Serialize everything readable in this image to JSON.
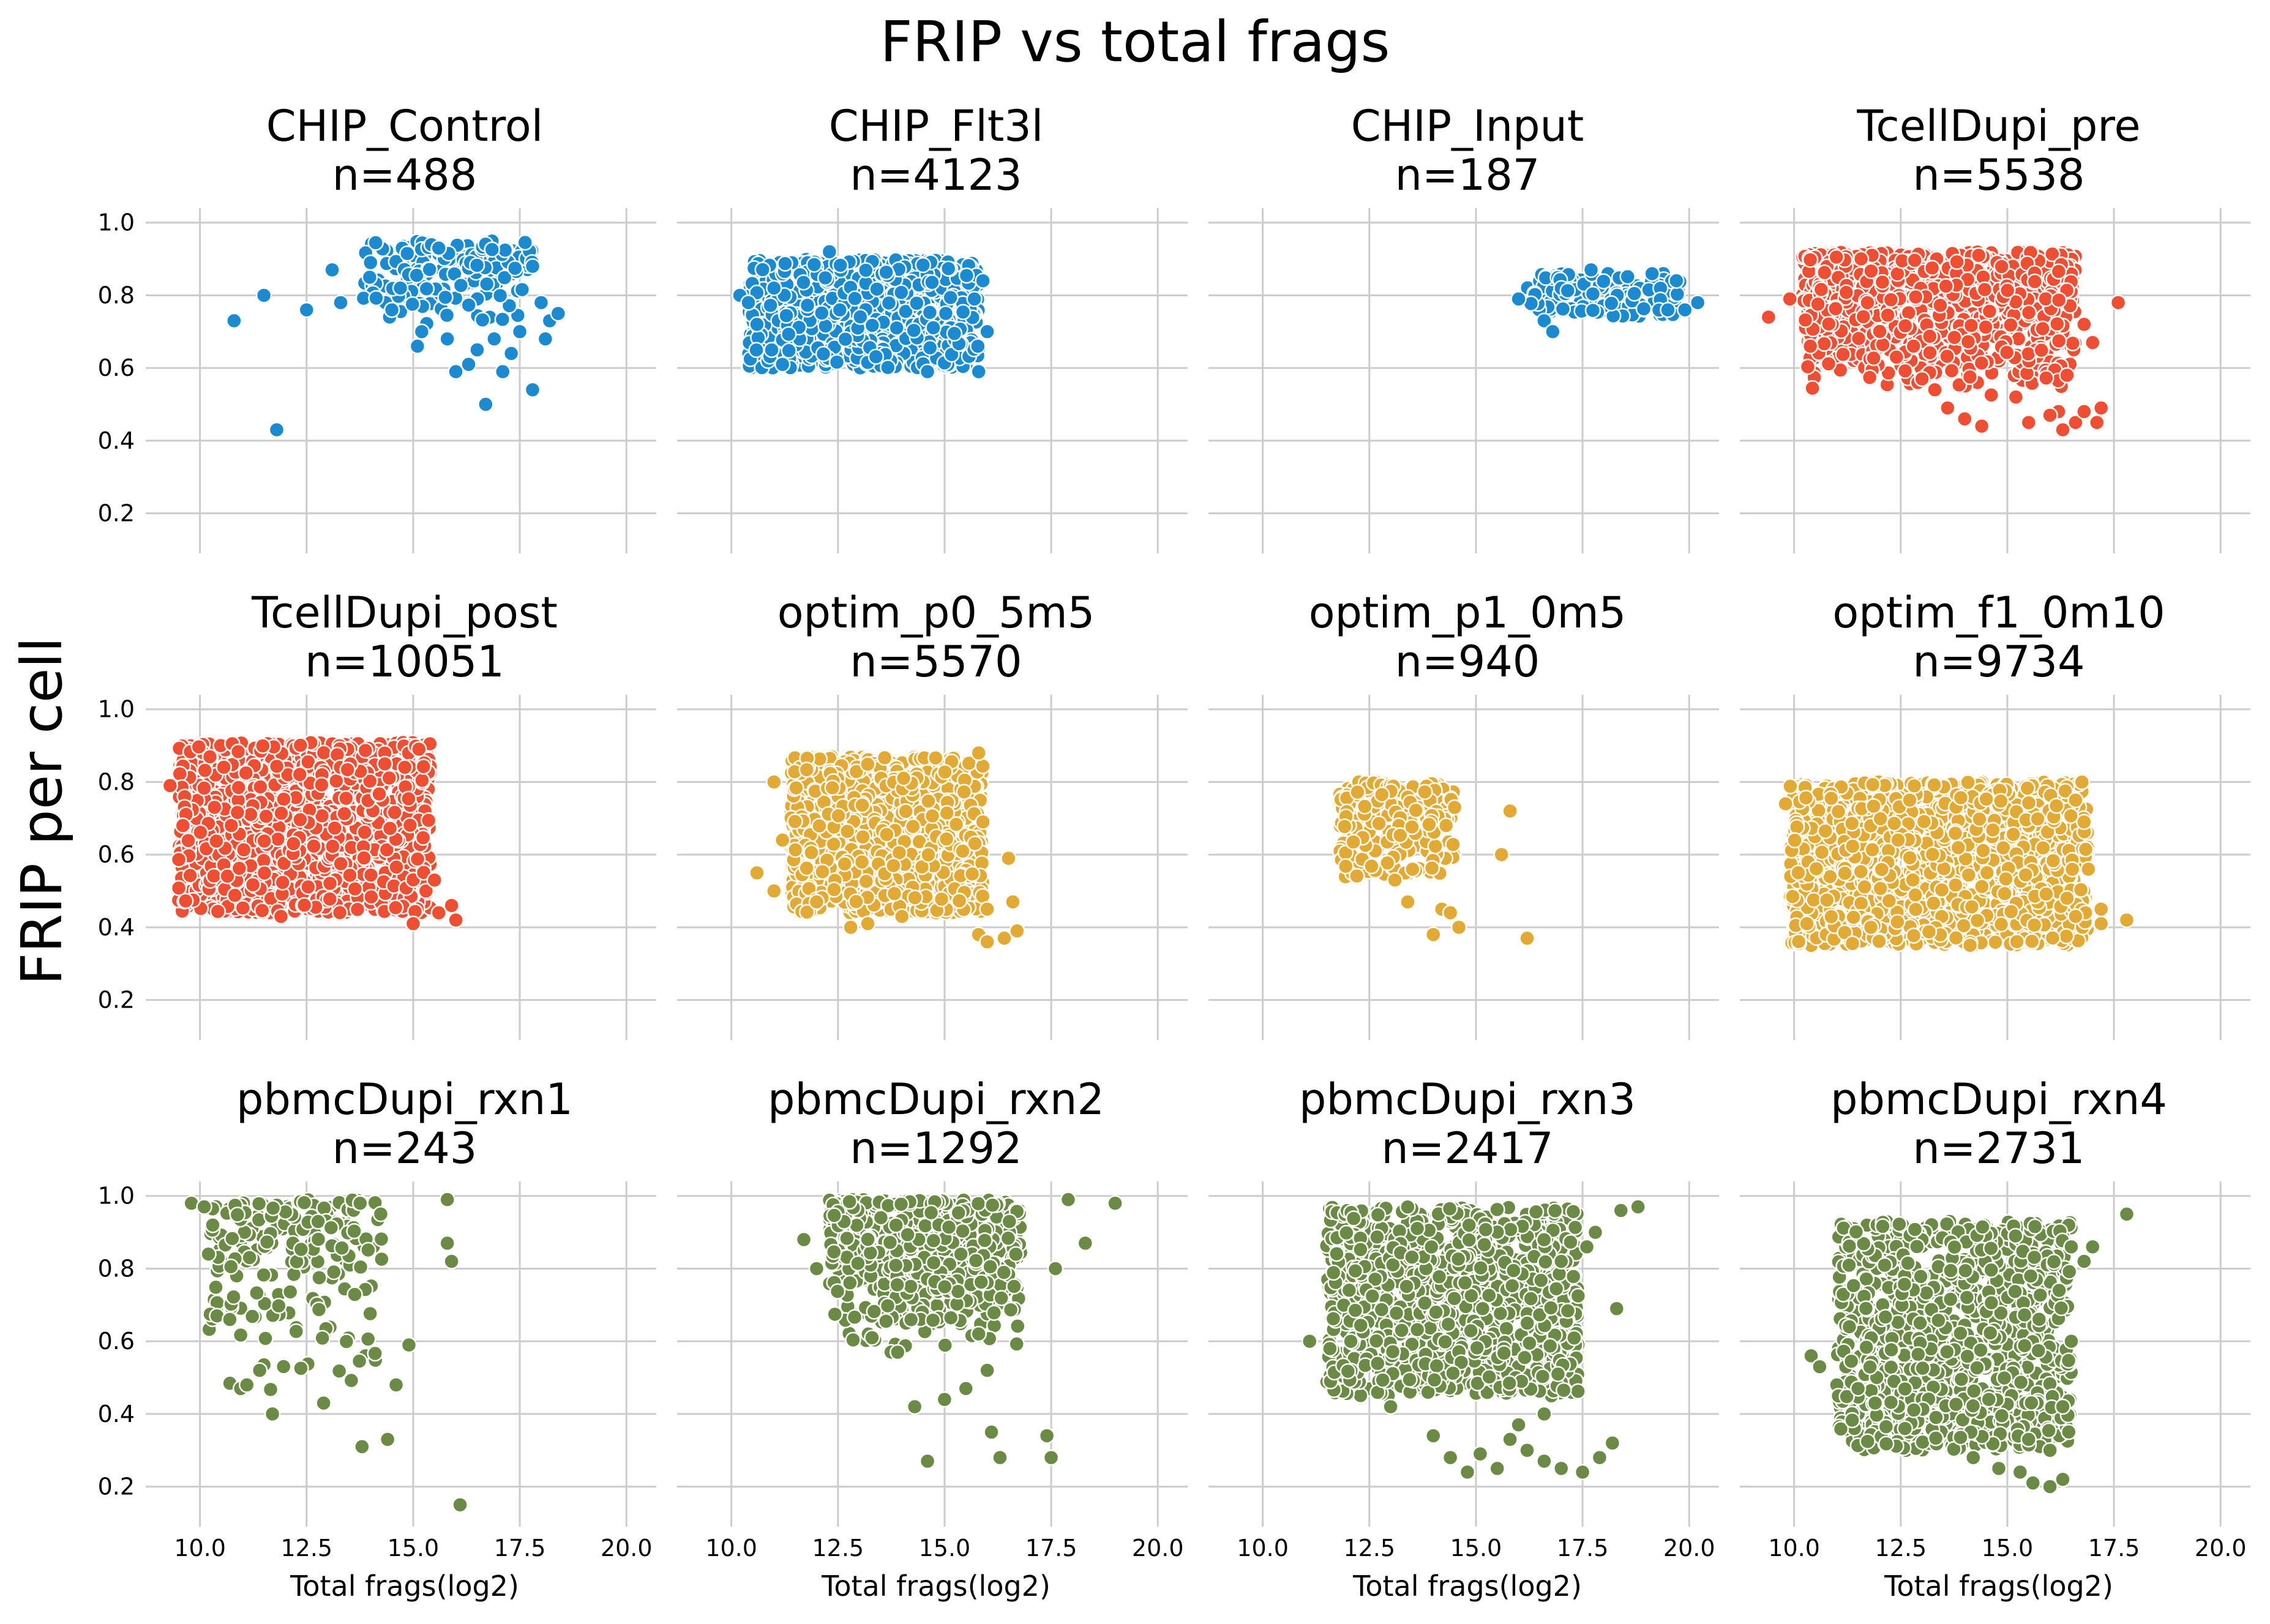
{
  "figure": {
    "title": "FRIP vs total frags",
    "ylabel": "FRIP per cell",
    "xlabel": "Total frags(log2)"
  },
  "colors": {
    "blue": "#1b8ad1",
    "red": "#f04e33",
    "yellow": "#e2a935",
    "green": "#6a8a46"
  },
  "chart_data": [
    {
      "type": "scatter",
      "title": "CHIP_Control",
      "subtitle": "n=488",
      "color": "#1b8ad1",
      "xlabel": "",
      "ylabel": "",
      "xlim": [
        8.9,
        20.7
      ],
      "ylim": [
        0.11,
        1.04
      ],
      "xticks": [
        "10.0",
        "12.5",
        "15.0",
        "17.5",
        "20.0"
      ],
      "yticks": [
        "0.2",
        "0.4",
        "0.6",
        "0.8",
        "1.0"
      ],
      "points": [
        [
          10.8,
          0.73
        ],
        [
          11.5,
          0.8
        ],
        [
          11.8,
          0.43
        ],
        [
          12.5,
          0.76
        ],
        [
          13.1,
          0.87
        ],
        [
          13.3,
          0.78
        ],
        [
          14.0,
          0.89
        ],
        [
          14.5,
          0.76
        ],
        [
          14.7,
          0.82
        ],
        [
          15.1,
          0.66
        ],
        [
          15.2,
          0.7
        ],
        [
          15.6,
          0.93
        ],
        [
          15.8,
          0.68
        ],
        [
          16.0,
          0.59
        ],
        [
          16.3,
          0.61
        ],
        [
          16.5,
          0.65
        ],
        [
          16.7,
          0.5
        ],
        [
          16.9,
          0.68
        ],
        [
          17.1,
          0.59
        ],
        [
          17.3,
          0.64
        ],
        [
          17.5,
          0.7
        ],
        [
          17.8,
          0.54
        ],
        [
          17.8,
          0.88
        ],
        [
          18.0,
          0.78
        ],
        [
          18.2,
          0.73
        ],
        [
          18.1,
          0.68
        ],
        [
          18.4,
          0.75
        ]
      ],
      "cloud": {
        "x0": 14.0,
        "x1": 17.6,
        "y0": 0.7,
        "y1": 0.95,
        "count": 170,
        "widen": 0.35,
        "top_bias": true
      }
    },
    {
      "type": "scatter",
      "title": "CHIP_Flt3l",
      "subtitle": "n=4123",
      "color": "#1b8ad1",
      "xlabel": "",
      "ylabel": "",
      "xlim": [
        8.9,
        20.7
      ],
      "ylim": [
        0.11,
        1.04
      ],
      "xticks": [
        "10.0",
        "12.5",
        "15.0",
        "17.5",
        "20.0"
      ],
      "yticks": [
        "0.2",
        "0.4",
        "0.6",
        "0.8",
        "1.0"
      ],
      "points": [
        [
          10.2,
          0.8
        ],
        [
          10.4,
          0.78
        ],
        [
          10.6,
          0.72
        ],
        [
          11.0,
          0.82
        ],
        [
          11.2,
          0.61
        ],
        [
          12.3,
          0.92
        ],
        [
          14.6,
          0.59
        ],
        [
          15.8,
          0.59
        ],
        [
          16.0,
          0.7
        ],
        [
          15.7,
          0.79
        ],
        [
          15.9,
          0.84
        ]
      ],
      "cloud": {
        "x0": 10.4,
        "x1": 15.8,
        "y0": 0.6,
        "y1": 0.9,
        "count": 900,
        "widen": 0.0,
        "top_bias": false
      }
    },
    {
      "type": "scatter",
      "title": "CHIP_Input",
      "subtitle": "n=187",
      "color": "#1b8ad1",
      "xlabel": "",
      "ylabel": "",
      "xlim": [
        8.9,
        20.7
      ],
      "ylim": [
        0.11,
        1.04
      ],
      "xticks": [
        "10.0",
        "12.5",
        "15.0",
        "17.5",
        "20.0"
      ],
      "yticks": [
        "0.2",
        "0.4",
        "0.6",
        "0.8",
        "1.0"
      ],
      "points": [
        [
          16.0,
          0.79
        ],
        [
          16.6,
          0.73
        ],
        [
          16.8,
          0.7
        ],
        [
          17.7,
          0.87
        ],
        [
          19.5,
          0.76
        ],
        [
          19.9,
          0.76
        ],
        [
          20.2,
          0.78
        ]
      ],
      "cloud": {
        "x0": 16.2,
        "x1": 19.8,
        "y0": 0.74,
        "y1": 0.86,
        "count": 160,
        "widen": 0.0,
        "top_bias": false
      }
    },
    {
      "type": "scatter",
      "title": "TcellDupi_pre",
      "subtitle": "n=5538",
      "color": "#f04e33",
      "xlabel": "",
      "ylabel": "",
      "xlim": [
        8.9,
        20.7
      ],
      "ylim": [
        0.11,
        1.04
      ],
      "xticks": [
        "10.0",
        "12.5",
        "15.0",
        "17.5",
        "20.0"
      ],
      "yticks": [
        "0.2",
        "0.4",
        "0.6",
        "0.8",
        "1.0"
      ],
      "points": [
        [
          9.4,
          0.74
        ],
        [
          9.9,
          0.79
        ],
        [
          17.6,
          0.78
        ],
        [
          16.4,
          0.58
        ],
        [
          16.2,
          0.48
        ],
        [
          16.3,
          0.43
        ],
        [
          16.6,
          0.45
        ],
        [
          16.8,
          0.48
        ],
        [
          17.1,
          0.45
        ],
        [
          17.2,
          0.49
        ],
        [
          16.0,
          0.47
        ],
        [
          15.5,
          0.45
        ],
        [
          15.2,
          0.52
        ],
        [
          14.0,
          0.46
        ],
        [
          14.4,
          0.44
        ],
        [
          13.6,
          0.49
        ],
        [
          13.3,
          0.54
        ],
        [
          13.0,
          0.57
        ],
        [
          12.4,
          0.63
        ],
        [
          12.8,
          0.66
        ],
        [
          17.0,
          0.67
        ],
        [
          16.8,
          0.72
        ]
      ],
      "cloud": {
        "x0": 10.2,
        "x1": 16.6,
        "y0": 0.52,
        "y1": 0.92,
        "count": 1000,
        "widen": 0.0,
        "top_bias": true
      }
    },
    {
      "type": "scatter",
      "title": "TcellDupi_post",
      "subtitle": "n=10051",
      "color": "#f04e33",
      "xlabel": "",
      "ylabel": "",
      "xlim": [
        8.9,
        20.7
      ],
      "ylim": [
        0.11,
        1.04
      ],
      "xticks": [
        "10.0",
        "12.5",
        "15.0",
        "17.5",
        "20.0"
      ],
      "yticks": [
        "0.2",
        "0.4",
        "0.6",
        "0.8",
        "1.0"
      ],
      "points": [
        [
          9.3,
          0.79
        ],
        [
          9.6,
          0.68
        ],
        [
          11.9,
          0.43
        ],
        [
          15.0,
          0.41
        ],
        [
          15.6,
          0.44
        ],
        [
          15.9,
          0.46
        ],
        [
          16.0,
          0.42
        ],
        [
          15.3,
          0.5
        ],
        [
          15.5,
          0.53
        ]
      ],
      "cloud": {
        "x0": 9.5,
        "x1": 15.4,
        "y0": 0.44,
        "y1": 0.91,
        "count": 1400,
        "widen": 0.0,
        "top_bias": false
      }
    },
    {
      "type": "scatter",
      "title": "optim_p0_5m5",
      "subtitle": "n=5570",
      "color": "#e2a935",
      "xlabel": "",
      "ylabel": "",
      "xlim": [
        8.9,
        20.7
      ],
      "ylim": [
        0.11,
        1.04
      ],
      "xticks": [
        "10.0",
        "12.5",
        "15.0",
        "17.5",
        "20.0"
      ],
      "yticks": [
        "0.2",
        "0.4",
        "0.6",
        "0.8",
        "1.0"
      ],
      "points": [
        [
          10.6,
          0.55
        ],
        [
          11.0,
          0.5
        ],
        [
          11.0,
          0.8
        ],
        [
          11.2,
          0.64
        ],
        [
          12.0,
          0.47
        ],
        [
          12.8,
          0.4
        ],
        [
          13.2,
          0.41
        ],
        [
          14.0,
          0.43
        ],
        [
          15.8,
          0.38
        ],
        [
          16.0,
          0.36
        ],
        [
          16.4,
          0.37
        ],
        [
          16.7,
          0.39
        ],
        [
          16.6,
          0.47
        ],
        [
          16.0,
          0.45
        ],
        [
          16.5,
          0.59
        ],
        [
          15.9,
          0.69
        ],
        [
          15.8,
          0.88
        ]
      ],
      "cloud": {
        "x0": 11.4,
        "x1": 15.9,
        "y0": 0.44,
        "y1": 0.87,
        "count": 1000,
        "widen": 0.0,
        "top_bias": false
      }
    },
    {
      "type": "scatter",
      "title": "optim_p1_0m5",
      "subtitle": "n=940",
      "color": "#e2a935",
      "xlabel": "",
      "ylabel": "",
      "xlim": [
        8.9,
        20.7
      ],
      "ylim": [
        0.11,
        1.04
      ],
      "xticks": [
        "10.0",
        "12.5",
        "15.0",
        "17.5",
        "20.0"
      ],
      "yticks": [
        "0.2",
        "0.4",
        "0.6",
        "0.8",
        "1.0"
      ],
      "points": [
        [
          15.6,
          0.6
        ],
        [
          15.8,
          0.72
        ],
        [
          16.2,
          0.37
        ],
        [
          14.6,
          0.4
        ],
        [
          14.2,
          0.45
        ],
        [
          14.4,
          0.44
        ],
        [
          14.0,
          0.38
        ],
        [
          13.4,
          0.47
        ],
        [
          13.1,
          0.53
        ],
        [
          14.5,
          0.73
        ],
        [
          14.3,
          0.68
        ]
      ],
      "cloud": {
        "x0": 11.8,
        "x1": 14.5,
        "y0": 0.5,
        "y1": 0.8,
        "count": 260,
        "widen": 0.0,
        "top_bias": true
      }
    },
    {
      "type": "scatter",
      "title": "optim_f1_0m10",
      "subtitle": "n=9734",
      "color": "#e2a935",
      "xlabel": "",
      "ylabel": "",
      "xlim": [
        8.9,
        20.7
      ],
      "ylim": [
        0.11,
        1.04
      ],
      "xticks": [
        "10.0",
        "12.5",
        "15.0",
        "17.5",
        "20.0"
      ],
      "yticks": [
        "0.2",
        "0.4",
        "0.6",
        "0.8",
        "1.0"
      ],
      "points": [
        [
          9.8,
          0.74
        ],
        [
          10.3,
          0.41
        ],
        [
          11.8,
          0.4
        ],
        [
          16.6,
          0.43
        ],
        [
          17.2,
          0.41
        ],
        [
          17.8,
          0.42
        ],
        [
          17.2,
          0.45
        ],
        [
          16.6,
          0.75
        ],
        [
          16.8,
          0.69
        ],
        [
          16.9,
          0.56
        ],
        [
          16.4,
          0.48
        ]
      ],
      "cloud": {
        "x0": 9.9,
        "x1": 16.9,
        "y0": 0.35,
        "y1": 0.8,
        "count": 1500,
        "widen": 0.0,
        "top_bias": false
      }
    },
    {
      "type": "scatter",
      "title": "pbmcDupi_rxn1",
      "subtitle": "n=243",
      "color": "#6a8a46",
      "xlabel": "Total frags(log2)",
      "ylabel": "",
      "xlim": [
        8.9,
        20.7
      ],
      "ylim": [
        0.11,
        1.04
      ],
      "xticks": [
        "10.0",
        "12.5",
        "15.0",
        "17.5",
        "20.0"
      ],
      "yticks": [
        "0.2",
        "0.4",
        "0.6",
        "0.8",
        "1.0"
      ],
      "points": [
        [
          9.8,
          0.98
        ],
        [
          10.1,
          0.97
        ],
        [
          10.2,
          0.84
        ],
        [
          10.3,
          0.92
        ],
        [
          10.4,
          0.67
        ],
        [
          10.7,
          0.66
        ],
        [
          11.1,
          0.48
        ],
        [
          11.4,
          0.52
        ],
        [
          11.7,
          0.4
        ],
        [
          12.9,
          0.43
        ],
        [
          13.8,
          0.31
        ],
        [
          14.4,
          0.33
        ],
        [
          14.6,
          0.48
        ],
        [
          14.9,
          0.59
        ],
        [
          15.8,
          0.99
        ],
        [
          15.8,
          0.87
        ],
        [
          15.9,
          0.82
        ],
        [
          16.1,
          0.15
        ]
      ],
      "cloud": {
        "x0": 10.2,
        "x1": 14.3,
        "y0": 0.45,
        "y1": 0.99,
        "count": 190,
        "widen": 0.0,
        "top_bias": true
      }
    },
    {
      "type": "scatter",
      "title": "pbmcDupi_rxn2",
      "subtitle": "n=1292",
      "color": "#6a8a46",
      "xlabel": "Total frags(log2)",
      "ylabel": "",
      "xlim": [
        8.9,
        20.7
      ],
      "ylim": [
        0.11,
        1.04
      ],
      "xticks": [
        "10.0",
        "12.5",
        "15.0",
        "17.5",
        "20.0"
      ],
      "yticks": [
        "0.2",
        "0.4",
        "0.6",
        "0.8",
        "1.0"
      ],
      "points": [
        [
          11.7,
          0.88
        ],
        [
          12.0,
          0.8
        ],
        [
          13.3,
          0.61
        ],
        [
          13.9,
          0.57
        ],
        [
          14.3,
          0.42
        ],
        [
          14.6,
          0.27
        ],
        [
          15.0,
          0.44
        ],
        [
          15.5,
          0.47
        ],
        [
          16.1,
          0.35
        ],
        [
          16.3,
          0.28
        ],
        [
          16.0,
          0.52
        ],
        [
          17.4,
          0.34
        ],
        [
          17.5,
          0.28
        ],
        [
          17.6,
          0.8
        ],
        [
          17.9,
          0.99
        ],
        [
          18.3,
          0.87
        ],
        [
          19.0,
          0.98
        ]
      ],
      "cloud": {
        "x0": 12.3,
        "x1": 16.8,
        "y0": 0.56,
        "y1": 0.99,
        "count": 650,
        "widen": 0.0,
        "top_bias": true
      }
    },
    {
      "type": "scatter",
      "title": "pbmcDupi_rxn3",
      "subtitle": "n=2417",
      "color": "#6a8a46",
      "xlabel": "Total frags(log2)",
      "ylabel": "",
      "xlim": [
        8.9,
        20.7
      ],
      "ylim": [
        0.11,
        1.04
      ],
      "xticks": [
        "10.0",
        "12.5",
        "15.0",
        "17.5",
        "20.0"
      ],
      "yticks": [
        "0.2",
        "0.4",
        "0.6",
        "0.8",
        "1.0"
      ],
      "points": [
        [
          11.1,
          0.6
        ],
        [
          13.0,
          0.42
        ],
        [
          14.0,
          0.34
        ],
        [
          14.4,
          0.28
        ],
        [
          14.8,
          0.24
        ],
        [
          15.1,
          0.29
        ],
        [
          15.5,
          0.25
        ],
        [
          15.8,
          0.33
        ],
        [
          16.2,
          0.3
        ],
        [
          16.6,
          0.27
        ],
        [
          17.0,
          0.25
        ],
        [
          17.5,
          0.24
        ],
        [
          17.9,
          0.28
        ],
        [
          18.2,
          0.32
        ],
        [
          18.3,
          0.69
        ],
        [
          17.6,
          0.86
        ],
        [
          17.8,
          0.9
        ],
        [
          18.4,
          0.96
        ],
        [
          18.8,
          0.97
        ],
        [
          17.0,
          0.82
        ],
        [
          16.6,
          0.4
        ],
        [
          16.0,
          0.37
        ]
      ],
      "cloud": {
        "x0": 11.5,
        "x1": 17.4,
        "y0": 0.45,
        "y1": 0.97,
        "count": 1100,
        "widen": 0.0,
        "top_bias": false
      }
    },
    {
      "type": "scatter",
      "title": "pbmcDupi_rxn4",
      "subtitle": "n=2731",
      "color": "#6a8a46",
      "xlabel": "Total frags(log2)",
      "ylabel": "",
      "xlim": [
        8.9,
        20.7
      ],
      "ylim": [
        0.11,
        1.04
      ],
      "xticks": [
        "10.0",
        "12.5",
        "15.0",
        "17.5",
        "20.0"
      ],
      "yticks": [
        "0.2",
        "0.4",
        "0.6",
        "0.8",
        "1.0"
      ],
      "points": [
        [
          10.4,
          0.56
        ],
        [
          10.6,
          0.53
        ],
        [
          11.5,
          0.47
        ],
        [
          11.9,
          0.43
        ],
        [
          12.6,
          0.36
        ],
        [
          14.2,
          0.28
        ],
        [
          14.8,
          0.25
        ],
        [
          15.3,
          0.24
        ],
        [
          15.6,
          0.21
        ],
        [
          16.0,
          0.2
        ],
        [
          16.3,
          0.22
        ],
        [
          16.0,
          0.3
        ],
        [
          15.5,
          0.33
        ],
        [
          16.3,
          0.42
        ],
        [
          16.8,
          0.82
        ],
        [
          17.0,
          0.86
        ],
        [
          17.8,
          0.95
        ],
        [
          16.5,
          0.6
        ]
      ],
      "cloud": {
        "x0": 11.0,
        "x1": 16.5,
        "y0": 0.3,
        "y1": 0.93,
        "count": 1100,
        "widen": 0.0,
        "top_bias": false
      }
    }
  ]
}
